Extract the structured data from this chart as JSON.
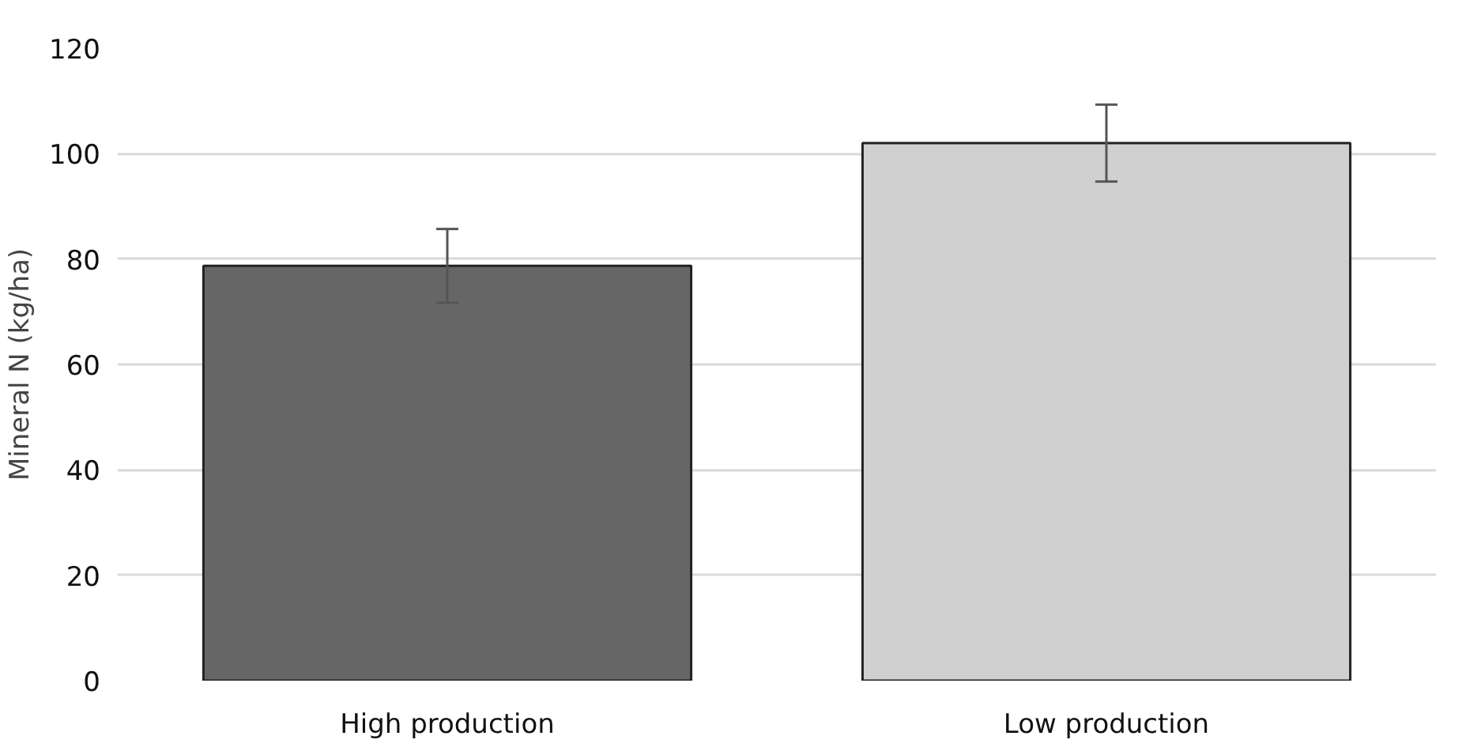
{
  "chart_data": {
    "type": "bar",
    "ylabel": "Mineral N (kg/ha)",
    "categories": [
      "High production",
      "Low production"
    ],
    "values": [
      78.7,
      102
    ],
    "colors": [
      "#666666",
      "#d0d0d0"
    ],
    "errors": [
      7,
      7.3
    ],
    "ylim": [
      0,
      120
    ],
    "yticks": [
      0,
      20,
      40,
      60,
      80,
      100,
      120
    ],
    "grid": "y"
  }
}
